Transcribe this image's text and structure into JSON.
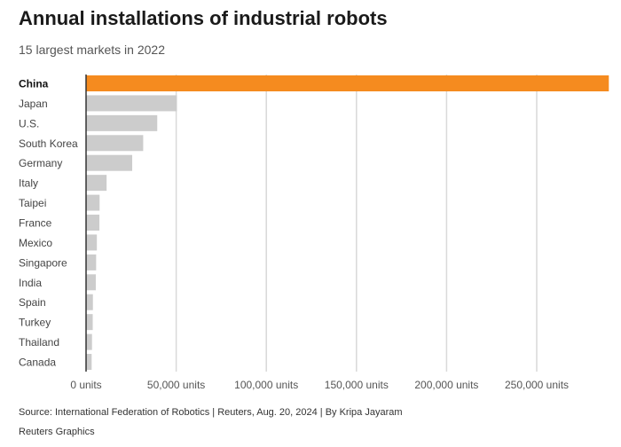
{
  "title": "Annual installations of industrial robots",
  "subtitle": "15 largest markets in 2022",
  "source": "Source: International Federation of Robotics | Reuters, Aug. 20, 2024 | By Kripa Jayaram",
  "credit": "Reuters Graphics",
  "colors": {
    "highlight": "#f58b1f",
    "bar": "#cccccc",
    "grid": "#d9d9d9",
    "axis": "#333333"
  },
  "chart_data": {
    "type": "bar",
    "orientation": "horizontal",
    "title": "Annual installations of industrial robots",
    "subtitle": "15 largest markets in 2022",
    "categories": [
      "China",
      "Japan",
      "U.S.",
      "South Korea",
      "Germany",
      "Italy",
      "Taipei",
      "France",
      "Mexico",
      "Singapore",
      "India",
      "Spain",
      "Turkey",
      "Thailand",
      "Canada"
    ],
    "values": [
      290000,
      50400,
      39500,
      31700,
      25600,
      11400,
      7500,
      7400,
      6000,
      5600,
      5400,
      3800,
      3700,
      3300,
      3100
    ],
    "highlight": "China",
    "xlim": [
      0,
      290000
    ],
    "ticks": [
      0,
      50000,
      100000,
      150000,
      200000,
      250000
    ],
    "tick_labels": [
      "0 units",
      "50,000 units",
      "100,000 units",
      "150,000 units",
      "200,000 units",
      "250,000 units"
    ],
    "grid": true
  }
}
